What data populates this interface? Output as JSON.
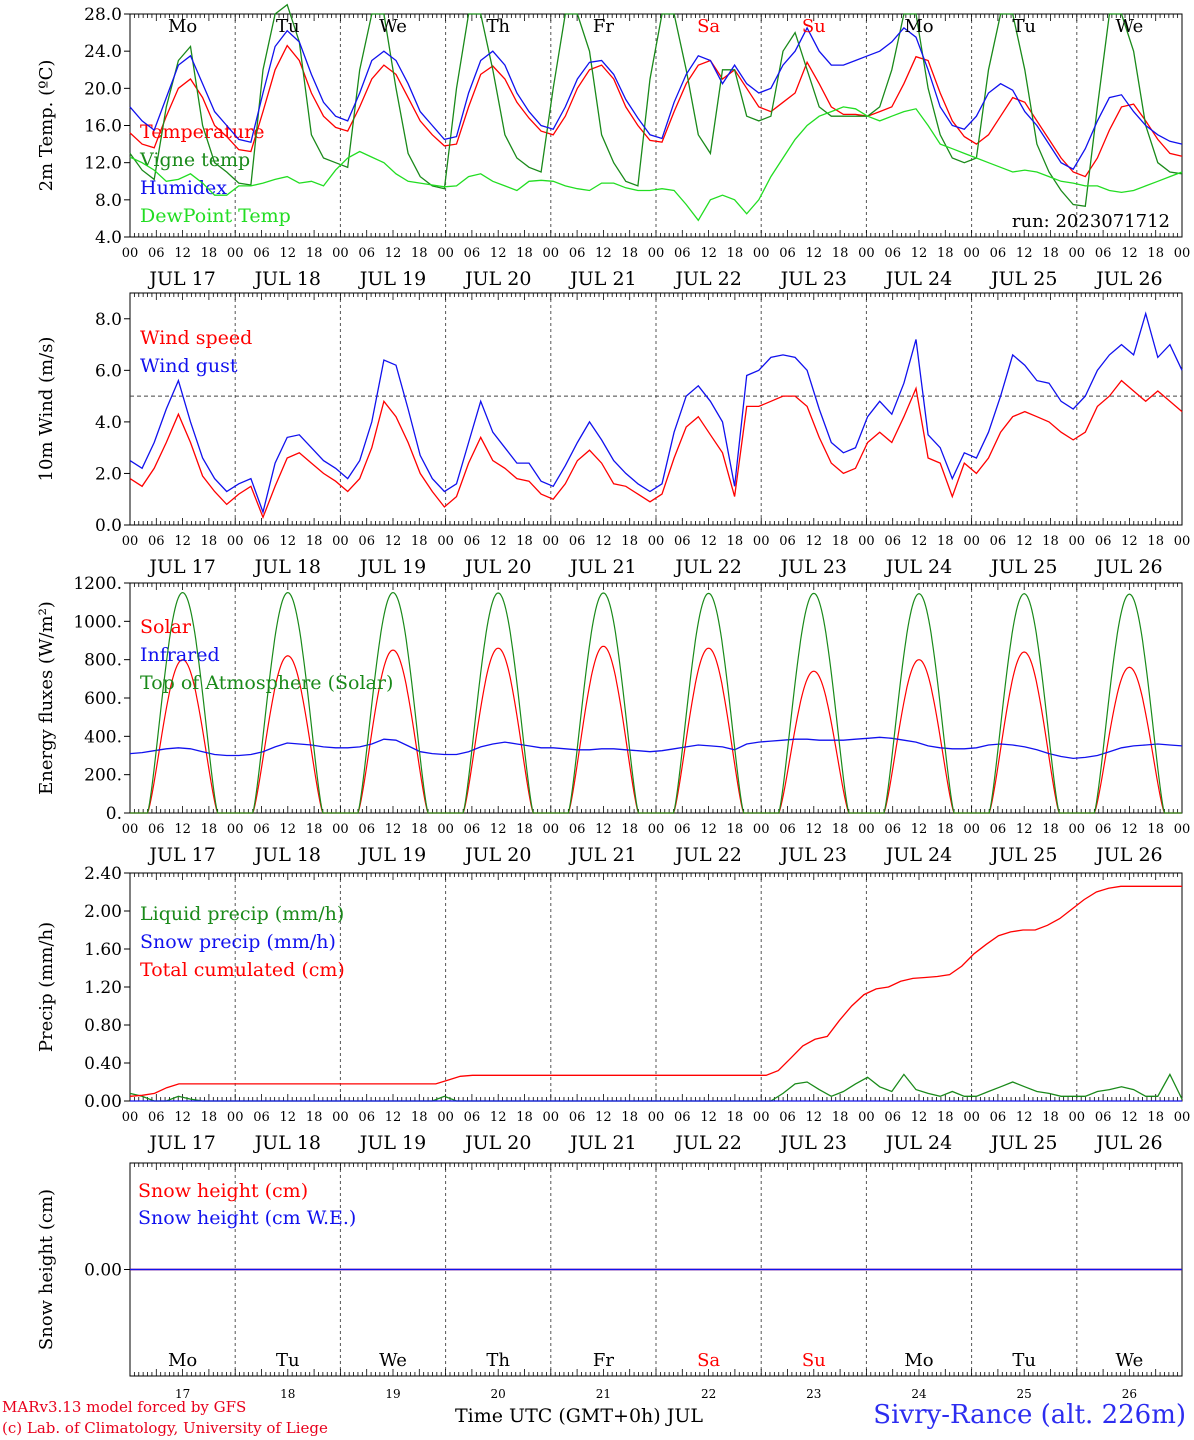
{
  "colors": {
    "red": "#ff0000",
    "green": "#1a8a1a",
    "blue": "#1111ee",
    "light_green": "#22dd22",
    "purple": "#7733aa"
  },
  "days": [
    {
      "dow": "Mo",
      "label": "JUL 17",
      "num": "17",
      "weekend": false
    },
    {
      "dow": "Tu",
      "label": "JUL 18",
      "num": "18",
      "weekend": false
    },
    {
      "dow": "We",
      "label": "JUL 19",
      "num": "19",
      "weekend": false
    },
    {
      "dow": "Th",
      "label": "JUL 20",
      "num": "20",
      "weekend": false
    },
    {
      "dow": "Fr",
      "label": "JUL 21",
      "num": "21",
      "weekend": false
    },
    {
      "dow": "Sa",
      "label": "JUL 22",
      "num": "22",
      "weekend": true
    },
    {
      "dow": "Su",
      "label": "JUL 23",
      "num": "23",
      "weekend": true
    },
    {
      "dow": "Mo",
      "label": "JUL 24",
      "num": "24",
      "weekend": false
    },
    {
      "dow": "Tu",
      "label": "JUL 25",
      "num": "25",
      "weekend": false
    },
    {
      "dow": "We",
      "label": "JUL 26",
      "num": "26",
      "weekend": false
    }
  ],
  "hour_ticks": [
    "00",
    "06",
    "12",
    "18"
  ],
  "final_tick": "00",
  "footer": {
    "model": "MARv3.13 model forced by GFS",
    "lab": "(c) Lab. of Climatology, University of Liege",
    "time_label": "Time UTC (GMT+0h) JUL",
    "station": "Sivry-Rance (alt. 226m)"
  },
  "chart_data": [
    {
      "type": "line",
      "id": "temp",
      "ylabel": "2m Temp. (ºC)",
      "ylim": [
        4,
        28
      ],
      "yticks": [
        "4.0",
        "8.0",
        "12.0",
        "16.0",
        "20.0",
        "24.0",
        "28.0"
      ],
      "annotation": "run: 2023071712",
      "series": [
        {
          "name": "Temperature",
          "color": "#ff0000",
          "values": [
            15.2,
            14.0,
            13.6,
            17.0,
            20.0,
            21.0,
            19.0,
            16.0,
            14.8,
            13.4,
            13.2,
            17.5,
            22.0,
            24.6,
            23.0,
            19.5,
            17.0,
            15.8,
            15.4,
            18.0,
            21.0,
            22.5,
            21.5,
            19.0,
            16.5,
            15.0,
            13.8,
            14.0,
            18.0,
            21.5,
            22.4,
            21.0,
            18.5,
            16.8,
            15.4,
            15.0,
            17.0,
            20.0,
            22.0,
            22.5,
            21.0,
            18.0,
            16.0,
            14.4,
            14.2,
            17.5,
            20.5,
            22.5,
            23.0,
            21.0,
            22.0,
            20.0,
            18.0,
            17.5,
            18.5,
            19.5,
            22.8,
            20.5,
            18.0,
            17.2,
            17.2,
            17.0,
            17.5,
            18.0,
            20.5,
            23.4,
            23.0,
            19.5,
            16.5,
            14.8,
            14.0,
            15.0,
            17.0,
            19.0,
            18.5,
            16.5,
            14.5,
            12.5,
            11.0,
            10.5,
            12.5,
            15.5,
            18.0,
            18.3,
            16.5,
            14.5,
            13.0,
            12.7
          ]
        },
        {
          "name": "Vigne temp",
          "color": "#1a8a1a",
          "values": [
            13.0,
            11.2,
            10.2,
            18.0,
            23.0,
            24.5,
            16.0,
            12.0,
            11.0,
            9.8,
            9.6,
            22.0,
            28.0,
            29.0,
            25.0,
            15.0,
            12.5,
            12.0,
            11.5,
            22.0,
            28.0,
            28.0,
            20.0,
            13.0,
            10.5,
            9.5,
            9.2,
            20.0,
            28.0,
            28.0,
            22.0,
            15.0,
            12.5,
            11.5,
            11.0,
            20.0,
            28.0,
            28.0,
            24.0,
            15.0,
            12.0,
            10.0,
            9.5,
            21.0,
            28.0,
            28.0,
            22.0,
            15.0,
            13.0,
            22.0,
            22.0,
            17.0,
            16.5,
            17.0,
            24.0,
            26.0,
            22.0,
            18.0,
            17.0,
            17.0,
            17.0,
            17.0,
            18.0,
            22.0,
            28.0,
            28.0,
            20.0,
            15.0,
            12.5,
            12.0,
            12.5,
            22.0,
            28.0,
            28.0,
            22.0,
            14.0,
            11.0,
            9.0,
            7.5,
            7.3,
            18.0,
            28.0,
            28.0,
            24.0,
            16.0,
            12.0,
            11.0,
            10.8
          ]
        },
        {
          "name": "Humidex",
          "color": "#1111ee",
          "values": [
            18.0,
            16.5,
            15.5,
            19.0,
            22.5,
            23.5,
            20.5,
            17.5,
            16.0,
            14.5,
            14.2,
            19.5,
            24.5,
            26.2,
            25.0,
            21.5,
            18.5,
            17.0,
            16.5,
            19.5,
            23.0,
            24.0,
            23.0,
            20.5,
            17.5,
            16.0,
            14.5,
            14.8,
            19.5,
            23.0,
            24.0,
            22.5,
            19.5,
            17.5,
            16.0,
            15.6,
            18.0,
            21.0,
            22.8,
            23.0,
            21.5,
            18.8,
            16.8,
            15.0,
            14.6,
            18.5,
            21.5,
            23.5,
            23.0,
            20.5,
            22.5,
            20.5,
            19.5,
            20.0,
            22.5,
            24.0,
            26.5,
            24.0,
            22.5,
            22.5,
            23.0,
            23.5,
            24.0,
            25.0,
            26.5,
            25.5,
            22.0,
            18.0,
            16.0,
            15.6,
            17.0,
            19.5,
            20.5,
            19.8,
            17.5,
            16.0,
            14.0,
            12.0,
            11.3,
            13.5,
            16.5,
            19.0,
            19.3,
            17.5,
            16.0,
            15.0,
            14.3,
            14.0
          ]
        },
        {
          "name": "DewPoint Temp",
          "color": "#22dd22",
          "values": [
            12.6,
            12.0,
            11.2,
            10.0,
            10.2,
            10.8,
            9.8,
            8.5,
            8.5,
            9.5,
            9.5,
            9.8,
            10.2,
            10.5,
            9.8,
            10.0,
            9.5,
            11.2,
            12.5,
            13.2,
            12.6,
            12.0,
            10.8,
            10.0,
            9.8,
            9.6,
            9.4,
            9.5,
            10.5,
            10.8,
            10.0,
            9.5,
            9.0,
            10.0,
            10.1,
            10.0,
            9.5,
            9.2,
            9.0,
            9.8,
            9.8,
            9.3,
            9.0,
            9.0,
            9.2,
            9.0,
            7.5,
            5.8,
            8.0,
            8.5,
            8.0,
            6.5,
            8.0,
            10.5,
            12.5,
            14.5,
            16.0,
            17.0,
            17.5,
            18.0,
            17.8,
            17.0,
            16.5,
            17.0,
            17.5,
            17.8,
            16.0,
            14.0,
            13.5,
            13.0,
            12.5,
            12.0,
            11.5,
            11.0,
            11.2,
            11.0,
            10.5,
            10.0,
            9.8,
            9.5,
            9.5,
            9.0,
            8.8,
            9.0,
            9.5,
            10.0,
            10.5,
            11.0
          ]
        }
      ]
    },
    {
      "type": "line",
      "id": "wind",
      "ylabel": "10m Wind (m/s)",
      "ylim": [
        0,
        9
      ],
      "yticks": [
        "0.0",
        "2.0",
        "4.0",
        "6.0",
        "8.0"
      ],
      "reference_line": 5,
      "series": [
        {
          "name": "Wind speed",
          "color": "#ff0000",
          "values": [
            1.8,
            1.5,
            2.2,
            3.2,
            4.3,
            3.2,
            1.9,
            1.3,
            0.8,
            1.2,
            1.5,
            0.3,
            1.5,
            2.6,
            2.8,
            2.4,
            2.0,
            1.7,
            1.3,
            1.8,
            3.0,
            4.8,
            4.2,
            3.2,
            2.0,
            1.3,
            0.7,
            1.1,
            2.4,
            3.4,
            2.5,
            2.2,
            1.8,
            1.7,
            1.2,
            1.0,
            1.6,
            2.5,
            2.9,
            2.4,
            1.6,
            1.5,
            1.2,
            0.9,
            1.2,
            2.6,
            3.8,
            4.2,
            3.5,
            2.8,
            1.1,
            4.6,
            4.6,
            4.8,
            5.0,
            5.0,
            4.6,
            3.4,
            2.4,
            2.0,
            2.2,
            3.2,
            3.6,
            3.2,
            4.2,
            5.3,
            2.6,
            2.4,
            1.1,
            2.4,
            2.0,
            2.6,
            3.6,
            4.2,
            4.4,
            4.2,
            4.0,
            3.6,
            3.3,
            3.6,
            4.6,
            5.0,
            5.6,
            5.2,
            4.8,
            5.2,
            4.8,
            4.4
          ]
        },
        {
          "name": "Wind gust",
          "color": "#1111ee",
          "values": [
            2.5,
            2.2,
            3.2,
            4.5,
            5.6,
            4.0,
            2.6,
            1.8,
            1.3,
            1.6,
            1.8,
            0.5,
            2.4,
            3.4,
            3.5,
            3.0,
            2.5,
            2.2,
            1.8,
            2.5,
            4.0,
            6.4,
            6.2,
            4.5,
            2.7,
            1.8,
            1.3,
            1.6,
            3.2,
            4.8,
            3.6,
            3.0,
            2.4,
            2.4,
            1.7,
            1.5,
            2.3,
            3.2,
            4.0,
            3.3,
            2.5,
            2.0,
            1.6,
            1.3,
            1.6,
            3.6,
            5.0,
            5.4,
            4.8,
            4.0,
            1.5,
            5.8,
            6.0,
            6.5,
            6.6,
            6.5,
            6.0,
            4.5,
            3.2,
            2.8,
            3.0,
            4.2,
            4.8,
            4.3,
            5.5,
            7.2,
            3.5,
            3.0,
            1.8,
            2.8,
            2.6,
            3.6,
            5.0,
            6.6,
            6.2,
            5.6,
            5.5,
            4.8,
            4.5,
            5.0,
            6.0,
            6.6,
            7.0,
            6.6,
            8.2,
            6.5,
            7.0,
            6.0
          ]
        }
      ]
    },
    {
      "type": "line",
      "id": "energy",
      "ylabel": "Energy fluxes (W/m²)",
      "ylim": [
        0,
        1200
      ],
      "yticks": [
        "0.",
        "200.",
        "400.",
        "600.",
        "800.",
        "1000.",
        "1200."
      ],
      "series": [
        {
          "name": "Solar",
          "color": "#ff0000",
          "daily_peak": [
            800,
            820,
            850,
            860,
            870,
            860,
            740,
            800,
            840,
            760
          ]
        },
        {
          "name": "Infrared",
          "color": "#1111ee",
          "values": [
            310,
            315,
            325,
            335,
            340,
            335,
            320,
            305,
            300,
            300,
            305,
            320,
            345,
            365,
            360,
            355,
            345,
            340,
            340,
            345,
            360,
            385,
            380,
            350,
            320,
            310,
            305,
            305,
            320,
            345,
            360,
            370,
            360,
            350,
            340,
            340,
            335,
            330,
            330,
            335,
            335,
            330,
            325,
            320,
            325,
            335,
            345,
            355,
            350,
            345,
            330,
            360,
            370,
            375,
            380,
            385,
            385,
            380,
            380,
            380,
            385,
            390,
            395,
            390,
            380,
            370,
            350,
            340,
            335,
            335,
            340,
            355,
            360,
            355,
            345,
            330,
            310,
            295,
            285,
            290,
            300,
            320,
            340,
            350,
            355,
            360,
            355,
            350
          ]
        },
        {
          "name": "Top of Atmosphere (Solar)",
          "color": "#1a8a1a",
          "daily_peak": [
            1150,
            1150,
            1150,
            1148,
            1148,
            1146,
            1146,
            1144,
            1144,
            1142
          ]
        }
      ]
    },
    {
      "type": "line",
      "id": "precip",
      "ylabel": "Precip (mm/h)",
      "ylim": [
        0,
        2.4
      ],
      "yticks": [
        "0.00",
        "0.40",
        "0.80",
        "1.20",
        "1.60",
        "2.00",
        "2.40"
      ],
      "series": [
        {
          "name": "Liquid precip (mm/h)",
          "color": "#1a8a1a",
          "values": [
            0.08,
            0.05,
            0.0,
            0.0,
            0.05,
            0.02,
            0.0,
            0.0,
            0.0,
            0.0,
            0.0,
            0.0,
            0.0,
            0.0,
            0.0,
            0.0,
            0.0,
            0.0,
            0.0,
            0.0,
            0.0,
            0.0,
            0.0,
            0.0,
            0.0,
            0.0,
            0.05,
            0.0,
            0.0,
            0.0,
            0.0,
            0.0,
            0.0,
            0.0,
            0.0,
            0.0,
            0.0,
            0.0,
            0.0,
            0.0,
            0.0,
            0.0,
            0.0,
            0.0,
            0.0,
            0.0,
            0.0,
            0.0,
            0.0,
            0.0,
            0.0,
            0.0,
            0.0,
            0.0,
            0.08,
            0.18,
            0.2,
            0.12,
            0.05,
            0.1,
            0.18,
            0.25,
            0.15,
            0.1,
            0.28,
            0.12,
            0.08,
            0.05,
            0.1,
            0.05,
            0.05,
            0.1,
            0.15,
            0.2,
            0.15,
            0.1,
            0.08,
            0.05,
            0.05,
            0.05,
            0.1,
            0.12,
            0.15,
            0.12,
            0.05,
            0.05,
            0.28,
            0.02
          ]
        },
        {
          "name": "Snow precip (mm/h)",
          "color": "#1111ee",
          "values": [
            0,
            0
          ]
        },
        {
          "name": "Total cumulated (cm)",
          "color": "#ff0000",
          "values": [
            0.05,
            0.06,
            0.08,
            0.14,
            0.18,
            0.18,
            0.18,
            0.18,
            0.18,
            0.18,
            0.18,
            0.18,
            0.18,
            0.18,
            0.18,
            0.18,
            0.18,
            0.18,
            0.18,
            0.18,
            0.18,
            0.18,
            0.18,
            0.18,
            0.18,
            0.18,
            0.22,
            0.26,
            0.27,
            0.27,
            0.27,
            0.27,
            0.27,
            0.27,
            0.27,
            0.27,
            0.27,
            0.27,
            0.27,
            0.27,
            0.27,
            0.27,
            0.27,
            0.27,
            0.27,
            0.27,
            0.27,
            0.27,
            0.27,
            0.27,
            0.27,
            0.27,
            0.27,
            0.32,
            0.45,
            0.58,
            0.65,
            0.68,
            0.85,
            1.0,
            1.12,
            1.18,
            1.2,
            1.26,
            1.29,
            1.3,
            1.31,
            1.33,
            1.42,
            1.55,
            1.65,
            1.74,
            1.78,
            1.8,
            1.8,
            1.85,
            1.92,
            2.02,
            2.12,
            2.2,
            2.24,
            2.26,
            2.26,
            2.26,
            2.26,
            2.26,
            2.26
          ]
        }
      ]
    },
    {
      "type": "line",
      "id": "snow",
      "ylabel": "Snow height (cm)",
      "ylim": [
        -1,
        1
      ],
      "yticks": [
        "0.00"
      ],
      "series": [
        {
          "name": "Snow height (cm)",
          "color": "#ff0000",
          "values": [
            0,
            0
          ]
        },
        {
          "name": "Snow height (cm W.E.)",
          "color": "#1111ee",
          "values": [
            0,
            0
          ]
        }
      ]
    }
  ]
}
